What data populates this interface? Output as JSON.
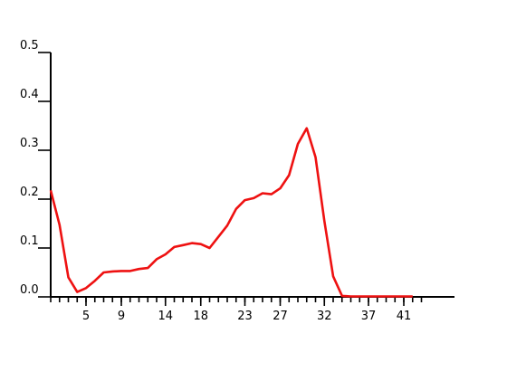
{
  "chart_data": {
    "type": "line",
    "title": "",
    "xlabel": "",
    "ylabel": "",
    "xlim": [
      1,
      43
    ],
    "ylim": [
      0,
      0.5
    ],
    "x_tick_labels": [
      "5",
      "9",
      "14",
      "18",
      "23",
      "27",
      "32",
      "37",
      "41"
    ],
    "x_tick_values": [
      5,
      9,
      14,
      18,
      23,
      27,
      32,
      37,
      41
    ],
    "y_tick_labels": [
      "0.0",
      "0.1",
      "0.2",
      "0.3",
      "0.4",
      "0.5"
    ],
    "y_tick_values": [
      0,
      0.1,
      0.2,
      0.3,
      0.4,
      0.5
    ],
    "grid": false,
    "legend": "none",
    "series": [
      {
        "color": "#ee1111",
        "x": [
          1,
          2,
          3,
          4,
          5,
          6,
          7,
          8,
          9,
          10,
          11,
          12,
          13,
          14,
          15,
          16,
          17,
          18,
          19,
          20,
          21,
          22,
          23,
          24,
          25,
          26,
          27,
          28,
          29,
          30,
          31,
          32,
          33,
          34,
          35,
          36,
          37,
          38,
          39,
          40,
          41,
          42
        ],
        "values": [
          0.218,
          0.147,
          0.04,
          0.01,
          0.018,
          0.033,
          0.05,
          0.052,
          0.053,
          0.053,
          0.057,
          0.059,
          0.077,
          0.087,
          0.102,
          0.106,
          0.11,
          0.108,
          0.1,
          0.123,
          0.146,
          0.18,
          0.198,
          0.202,
          0.212,
          0.21,
          0.222,
          0.249,
          0.313,
          0.345,
          0.286,
          0.155,
          0.042,
          0.002,
          0.001,
          0.001,
          0.001,
          0.001,
          0.001,
          0.001,
          0.001,
          0.001
        ]
      }
    ]
  }
}
